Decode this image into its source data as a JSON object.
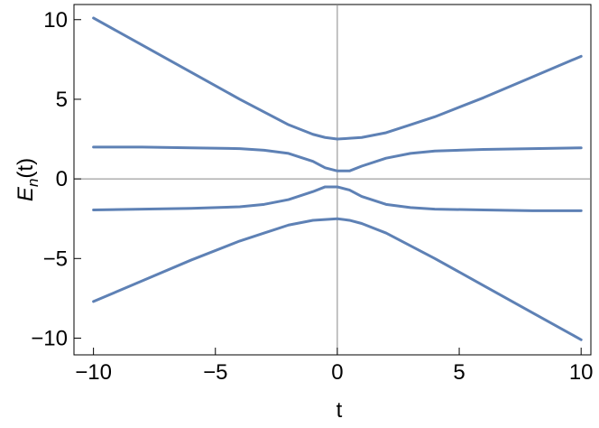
{
  "chart_data": {
    "type": "line",
    "xlabel": "t",
    "ylabel": {
      "symbol": "E",
      "subscript": "n",
      "argument": "(t)"
    },
    "x": [
      -10,
      -8,
      -6,
      -4,
      -3,
      -2,
      -1,
      -0.5,
      0,
      0.5,
      1,
      2,
      3,
      4,
      6,
      8,
      10
    ],
    "series": [
      {
        "color": "#5e81b5",
        "values": [
          10.1,
          8.4,
          6.7,
          5.0,
          4.2,
          3.4,
          2.8,
          2.6,
          2.5,
          2.55,
          2.6,
          2.9,
          3.4,
          3.9,
          5.1,
          6.4,
          7.7
        ]
      },
      {
        "color": "#5e81b5",
        "values": [
          2.0,
          2.0,
          1.95,
          1.9,
          1.8,
          1.6,
          1.1,
          0.7,
          0.5,
          0.5,
          0.8,
          1.3,
          1.6,
          1.75,
          1.85,
          1.9,
          1.95
        ]
      },
      {
        "color": "#5e81b5",
        "values": [
          -1.95,
          -1.9,
          -1.85,
          -1.75,
          -1.6,
          -1.3,
          -0.8,
          -0.5,
          -0.5,
          -0.7,
          -1.1,
          -1.6,
          -1.8,
          -1.9,
          -1.95,
          -2.0,
          -2.0
        ]
      },
      {
        "color": "#5e81b5",
        "values": [
          -7.7,
          -6.4,
          -5.1,
          -3.9,
          -3.4,
          -2.9,
          -2.6,
          -2.55,
          -2.5,
          -2.6,
          -2.8,
          -3.4,
          -4.2,
          -5.0,
          -6.7,
          -8.4,
          -10.1
        ]
      }
    ],
    "xlim": [
      -10.8,
      10.4
    ],
    "ylim": [
      -11.05,
      10.95
    ],
    "xticks": [
      {
        "value": -10,
        "label": "−10"
      },
      {
        "value": -5,
        "label": "−5"
      },
      0,
      5,
      10
    ],
    "yticks": [
      {
        "value": -10,
        "label": "−10"
      },
      {
        "value": -5,
        "label": "−5"
      },
      0,
      5,
      10
    ],
    "zero_axes": true
  }
}
